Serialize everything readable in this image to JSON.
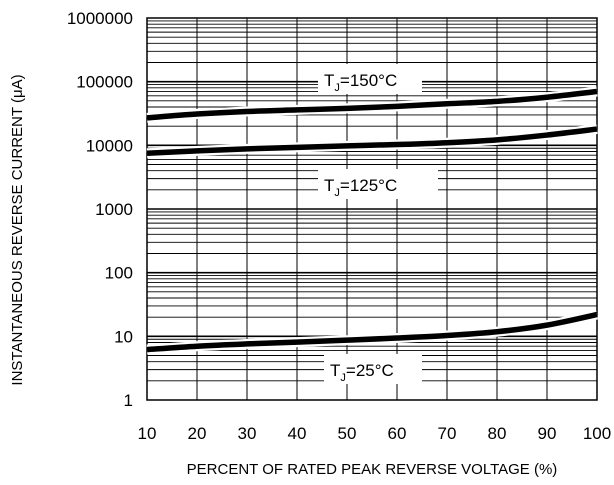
{
  "chart_data": {
    "type": "line",
    "title": "",
    "xlabel": "PERCENT OF RATED PEAK REVERSE VOLTAGE (%)",
    "ylabel": "INSTANTANEOUS REVERSE CURRENT (μA)",
    "xlim": [
      10,
      100
    ],
    "ylim": [
      1,
      1000000
    ],
    "yscale": "log",
    "grid": true,
    "x_ticks": [
      "10",
      "20",
      "30",
      "40",
      "50",
      "60",
      "70",
      "80",
      "90",
      "100"
    ],
    "y_ticks": [
      "1",
      "10",
      "100",
      "1000",
      "10000",
      "100000",
      "1000000"
    ],
    "series": [
      {
        "name": "150°C",
        "x": [
          10,
          20,
          30,
          40,
          50,
          60,
          70,
          80,
          90,
          100
        ],
        "y": [
          27000,
          31000,
          34000,
          36000,
          38000,
          41000,
          45000,
          49000,
          57000,
          70000
        ]
      },
      {
        "name": "125°C",
        "x": [
          10,
          20,
          30,
          40,
          50,
          60,
          70,
          80,
          90,
          100
        ],
        "y": [
          7500,
          8200,
          8800,
          9300,
          9800,
          10300,
          11000,
          12200,
          14500,
          18000
        ]
      },
      {
        "name": "25°C",
        "x": [
          10,
          20,
          30,
          40,
          50,
          60,
          70,
          80,
          90,
          100
        ],
        "y": [
          6.2,
          7.0,
          7.6,
          8.1,
          8.7,
          9.4,
          10.3,
          11.8,
          15.0,
          22.0
        ]
      }
    ],
    "annotations": [
      {
        "base": "T",
        "sub": "J",
        "text": "=150°C",
        "series": 0
      },
      {
        "base": "T",
        "sub": "J",
        "text": "=125°C",
        "series": 1
      },
      {
        "base": "T",
        "sub": "J",
        "text": "=25°C",
        "series": 2
      }
    ]
  }
}
